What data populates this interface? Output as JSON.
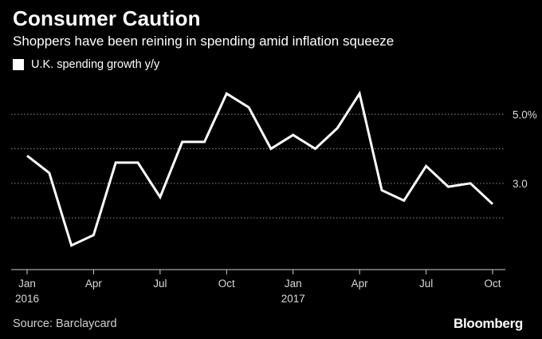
{
  "header": {
    "title": "Consumer Caution",
    "subtitle": "Shoppers have been reining in spending amid inflation squeeze"
  },
  "legend": {
    "label": "U.K. spending growth y/y"
  },
  "footer": {
    "source": "Source: Barclaycard",
    "brand": "Bloomberg"
  },
  "colors": {
    "background": "#000000",
    "line": "#ffffff",
    "grid": "#8a8a8a"
  },
  "chart_data": {
    "type": "line",
    "title": "Consumer Caution",
    "subtitle": "Shoppers have been reining in spending amid inflation squeeze",
    "x": [
      "2016-01",
      "2016-02",
      "2016-03",
      "2016-04",
      "2016-05",
      "2016-06",
      "2016-07",
      "2016-08",
      "2016-09",
      "2016-10",
      "2016-11",
      "2016-12",
      "2017-01",
      "2017-02",
      "2017-03",
      "2017-04",
      "2017-05",
      "2017-06",
      "2017-07",
      "2017-08",
      "2017-09",
      "2017-10"
    ],
    "series": [
      {
        "name": "U.K. spending growth y/y",
        "values": [
          3.8,
          3.3,
          1.2,
          1.5,
          3.6,
          3.6,
          2.6,
          4.2,
          4.2,
          5.6,
          5.2,
          4.0,
          4.4,
          4.0,
          4.6,
          5.6,
          2.8,
          2.5,
          3.5,
          2.9,
          3.0,
          2.4
        ]
      }
    ],
    "x_ticks": [
      {
        "month": "Jan",
        "year": "2016",
        "index": 0
      },
      {
        "month": "Apr",
        "year": "",
        "index": 3
      },
      {
        "month": "Jul",
        "year": "",
        "index": 6
      },
      {
        "month": "Oct",
        "year": "",
        "index": 9
      },
      {
        "month": "Jan",
        "year": "2017",
        "index": 12
      },
      {
        "month": "Apr",
        "year": "",
        "index": 15
      },
      {
        "month": "Jul",
        "year": "",
        "index": 18
      },
      {
        "month": "Oct",
        "year": "",
        "index": 21
      }
    ],
    "y_ticks": [
      {
        "value": 5.0,
        "label": "5.0%"
      },
      {
        "value": 4.0,
        "label": ""
      },
      {
        "value": 3.0,
        "label": "3.0"
      },
      {
        "value": 2.0,
        "label": ""
      }
    ],
    "ylim": [
      0.5,
      6.0
    ],
    "grid": "horizontal-dotted",
    "legend_position": "top-left",
    "xlabel": "",
    "ylabel": ""
  }
}
